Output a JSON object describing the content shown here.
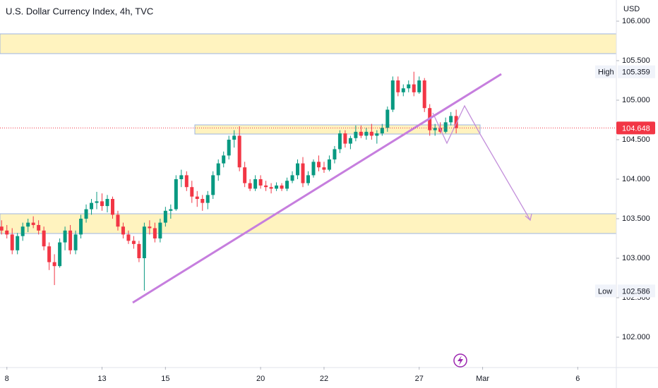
{
  "chart_data": {
    "type": "candlestick",
    "title": "U.S. Dollar Currency Index, 4h, TVC",
    "y_axis_label": "USD",
    "up_color": "#089981",
    "down_color": "#f23645",
    "ylim": [
      101.625,
      106.268
    ],
    "yticks": [
      {
        "value": 106,
        "label": "106.000"
      },
      {
        "value": 105.5,
        "label": "105.500"
      },
      {
        "value": 105,
        "label": "105.000"
      },
      {
        "value": 104.5,
        "label": "104.500"
      },
      {
        "value": 104,
        "label": "104.000"
      },
      {
        "value": 103.5,
        "label": "103.500"
      },
      {
        "value": 103,
        "label": "103.000"
      },
      {
        "value": 102.5,
        "label": "102.500"
      },
      {
        "value": 102,
        "label": "102.000"
      }
    ],
    "xlim": [
      -0.3,
      116.3
    ],
    "xticks": [
      {
        "value": 1,
        "label": "8"
      },
      {
        "value": 19,
        "label": "13"
      },
      {
        "value": 31,
        "label": "15"
      },
      {
        "value": 49,
        "label": "20"
      },
      {
        "value": 61,
        "label": "22"
      },
      {
        "value": 79,
        "label": "27"
      },
      {
        "value": 91,
        "label": "Mar"
      },
      {
        "value": 109,
        "label": "6"
      }
    ],
    "high_marker": {
      "label": "High",
      "value": 105.359
    },
    "low_marker": {
      "label": "Low",
      "value": 102.586
    },
    "last_price": 104.648,
    "open": [
      103.4,
      103.35,
      103.3,
      103.1,
      103.28,
      103.4,
      103.45,
      103.42,
      103.35,
      103.15,
      102.95,
      102.9,
      103.2,
      103.35,
      103.1,
      103.3,
      103.5,
      103.62,
      103.7,
      103.72,
      103.66,
      103.75,
      103.55,
      103.4,
      103.3,
      103.22,
      103.18,
      103.0,
      103.4,
      103.38,
      103.25,
      103.45,
      103.6,
      103.62,
      104.0,
      104.05,
      103.9,
      103.78,
      103.75,
      103.7,
      103.8,
      104.05,
      104.2,
      104.3,
      104.5,
      104.55,
      104.15,
      103.95,
      103.88,
      104.0,
      103.92,
      103.9,
      103.88,
      103.92,
      103.88,
      103.98,
      104.05,
      104.2,
      103.95,
      104.05,
      104.22,
      104.15,
      104.12,
      104.25,
      104.38,
      104.58,
      104.45,
      104.52,
      104.6,
      104.55,
      104.6,
      104.55,
      104.58,
      104.65,
      104.88,
      105.25,
      105.1,
      105.15,
      105.2,
      105.1,
      105.25,
      104.9,
      104.62,
      104.65,
      104.6,
      104.72,
      104.8
    ],
    "high": [
      103.48,
      103.42,
      103.38,
      103.32,
      103.45,
      103.5,
      103.53,
      103.48,
      103.4,
      103.2,
      103.05,
      103.25,
      103.4,
      103.42,
      103.35,
      103.55,
      103.68,
      103.75,
      103.84,
      103.82,
      103.8,
      103.78,
      103.6,
      103.45,
      103.35,
      103.28,
      103.22,
      103.45,
      103.48,
      103.45,
      103.5,
      103.65,
      103.68,
      104.05,
      104.12,
      104.1,
      103.98,
      103.85,
      103.8,
      103.85,
      104.1,
      104.25,
      104.35,
      104.55,
      104.62,
      104.67,
      104.22,
      104.0,
      104.05,
      104.05,
      103.98,
      103.95,
      103.96,
      103.95,
      104.02,
      104.1,
      104.25,
      104.28,
      104.1,
      104.25,
      104.3,
      104.22,
      104.3,
      104.42,
      104.62,
      104.62,
      104.55,
      104.68,
      104.68,
      104.65,
      104.7,
      104.62,
      104.7,
      104.92,
      105.3,
      105.3,
      105.2,
      105.25,
      105.36,
      105.3,
      105.28,
      104.95,
      104.7,
      104.72,
      104.78,
      104.85,
      104.88
    ],
    "low": [
      103.3,
      103.25,
      103.05,
      103.05,
      103.22,
      103.33,
      103.38,
      103.3,
      103.1,
      102.85,
      102.66,
      102.88,
      103.1,
      103.05,
      103.05,
      103.25,
      103.45,
      103.55,
      103.62,
      103.6,
      103.58,
      103.5,
      103.35,
      103.25,
      103.18,
      103.12,
      102.95,
      102.59,
      103.3,
      103.2,
      103.2,
      103.4,
      103.5,
      103.6,
      103.9,
      103.85,
      103.7,
      103.65,
      103.6,
      103.62,
      103.75,
      103.98,
      104.15,
      104.25,
      104.4,
      104.1,
      103.9,
      103.85,
      103.85,
      103.88,
      103.85,
      103.82,
      103.85,
      103.85,
      103.85,
      103.95,
      104.0,
      103.9,
      103.92,
      104.02,
      104.1,
      104.08,
      104.1,
      104.2,
      104.33,
      104.4,
      104.38,
      104.48,
      104.52,
      104.5,
      104.5,
      104.45,
      104.55,
      104.6,
      104.85,
      105.05,
      105.05,
      105.1,
      105.05,
      105.08,
      104.85,
      104.55,
      104.55,
      104.58,
      104.58,
      104.68,
      104.58
    ],
    "close": [
      103.35,
      103.3,
      103.1,
      103.28,
      103.4,
      103.45,
      103.42,
      103.35,
      103.15,
      102.95,
      102.9,
      103.2,
      103.35,
      103.1,
      103.3,
      103.5,
      103.62,
      103.7,
      103.72,
      103.66,
      103.75,
      103.55,
      103.4,
      103.3,
      103.22,
      103.18,
      103.0,
      103.4,
      103.38,
      103.25,
      103.45,
      103.6,
      103.62,
      104.0,
      104.05,
      103.9,
      103.78,
      103.75,
      103.7,
      103.8,
      104.05,
      104.2,
      104.3,
      104.5,
      104.55,
      104.15,
      103.95,
      103.88,
      104.0,
      103.92,
      103.9,
      103.88,
      103.92,
      103.88,
      103.98,
      104.05,
      104.2,
      103.95,
      104.05,
      104.22,
      104.15,
      104.12,
      104.25,
      104.38,
      104.58,
      104.45,
      104.52,
      104.6,
      104.55,
      104.6,
      104.55,
      104.58,
      104.65,
      104.88,
      105.25,
      105.1,
      105.15,
      105.2,
      105.1,
      105.25,
      104.9,
      104.62,
      104.65,
      104.6,
      104.72,
      104.8,
      104.648
    ]
  }
}
